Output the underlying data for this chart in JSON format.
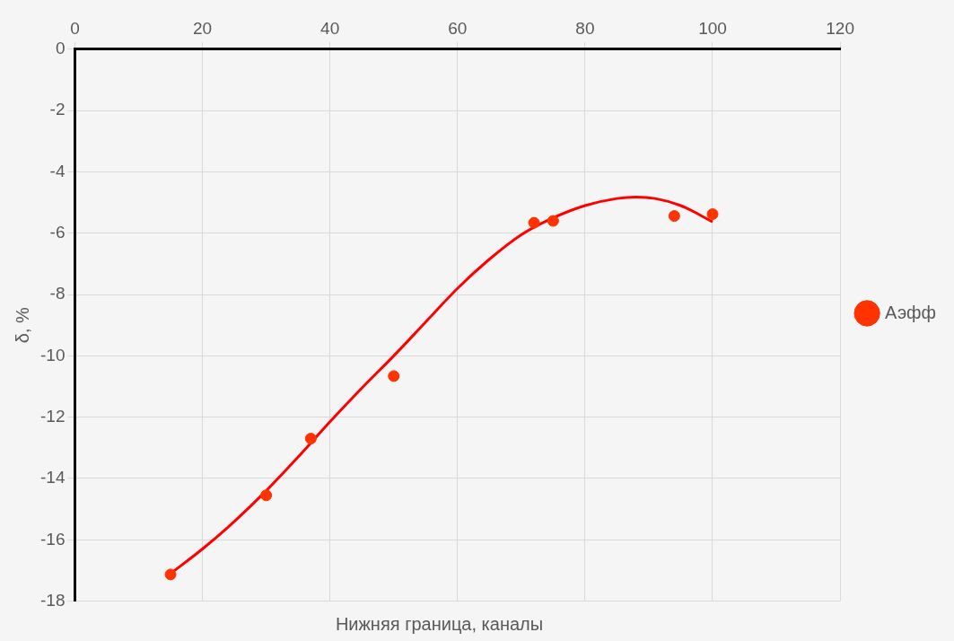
{
  "chart_data": {
    "type": "scatter",
    "xlabel": "Нижняя граница, каналы",
    "ylabel": "δ, %",
    "xlim": [
      0,
      120
    ],
    "xticks": [
      0,
      20,
      40,
      60,
      80,
      100,
      120
    ],
    "ylim": [
      -18,
      0
    ],
    "yticks": [
      -18,
      -16,
      -14,
      -12,
      -10,
      -8,
      -6,
      -4,
      -2,
      0
    ],
    "grid": true,
    "legend": "right",
    "marker": "circle",
    "series": [
      {
        "name": "Аэфф",
        "color": "#ff3300",
        "x": [
          15,
          30,
          37,
          50,
          72,
          75,
          94,
          100
        ],
        "values": [
          -17.13,
          -14.55,
          -12.7,
          -10.66,
          -5.66,
          -5.6,
          -5.44,
          -5.38
        ]
      },
      {
        "type": "line",
        "color": "#ff0000",
        "marker": "none",
        "x": [
          15,
          20,
          25,
          30,
          35,
          40,
          45,
          50,
          55,
          60,
          65,
          70,
          75,
          80,
          85,
          88,
          91,
          95,
          100
        ],
        "values": [
          -17.1,
          -16.3,
          -15.4,
          -14.4,
          -13.3,
          -12.15,
          -11.05,
          -10.0,
          -8.9,
          -7.8,
          -6.85,
          -6.05,
          -5.5,
          -5.1,
          -4.87,
          -4.82,
          -4.87,
          -5.1,
          -5.63
        ]
      }
    ]
  }
}
